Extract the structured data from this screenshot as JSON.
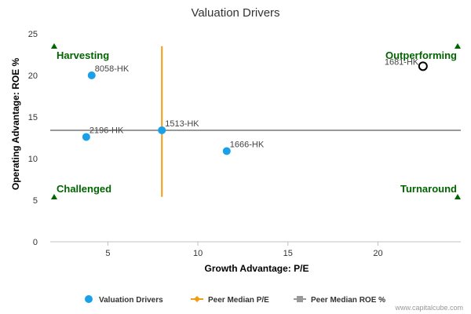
{
  "chart_data": {
    "type": "scatter",
    "title": "Valuation Drivers",
    "xlabel": "Growth Advantage: P/E",
    "ylabel": "Operating Advantage: ROE %",
    "xlim": [
      1.8,
      24.6
    ],
    "ylim": [
      0,
      25
    ],
    "x_ticks": [
      5,
      10,
      15,
      20
    ],
    "y_ticks": [
      0,
      5,
      10,
      15,
      20,
      25
    ],
    "grid": false,
    "points": [
      {
        "label": "8058-HK",
        "x": 4.1,
        "y": 20.0,
        "highlight": false
      },
      {
        "label": "2196-HK",
        "x": 3.8,
        "y": 12.6,
        "highlight": false
      },
      {
        "label": "1513-HK",
        "x": 8.0,
        "y": 13.4,
        "highlight": false
      },
      {
        "label": "1666-HK",
        "x": 11.6,
        "y": 10.9,
        "highlight": false
      },
      {
        "label": "1681-HK",
        "x": 22.5,
        "y": 21.1,
        "highlight": true
      }
    ],
    "peer_median_pe": {
      "x": 8.0,
      "y_range": [
        5.4,
        23.5
      ]
    },
    "peer_median_roe": {
      "y": 13.4
    },
    "quadrants": {
      "top_left": "Harvesting",
      "top_right": "Outperforming",
      "bottom_left": "Challenged",
      "bottom_right": "Turnaround"
    },
    "legend": [
      {
        "name": "Valuation Drivers",
        "color": "#1aa0e8",
        "marker": "circle"
      },
      {
        "name": "Peer Median P/E",
        "color": "#f39c12",
        "marker": "diamond"
      },
      {
        "name": "Peer Median ROE %",
        "color": "#999999",
        "marker": "square"
      }
    ],
    "legend_position": "bottom",
    "colors": {
      "points": "#1aa0e8",
      "median_pe": "#f39c12",
      "median_roe": "#999999",
      "quadrant": "#006400",
      "highlight_stroke": "#000000"
    }
  },
  "credit": "www.capitalcube.com"
}
